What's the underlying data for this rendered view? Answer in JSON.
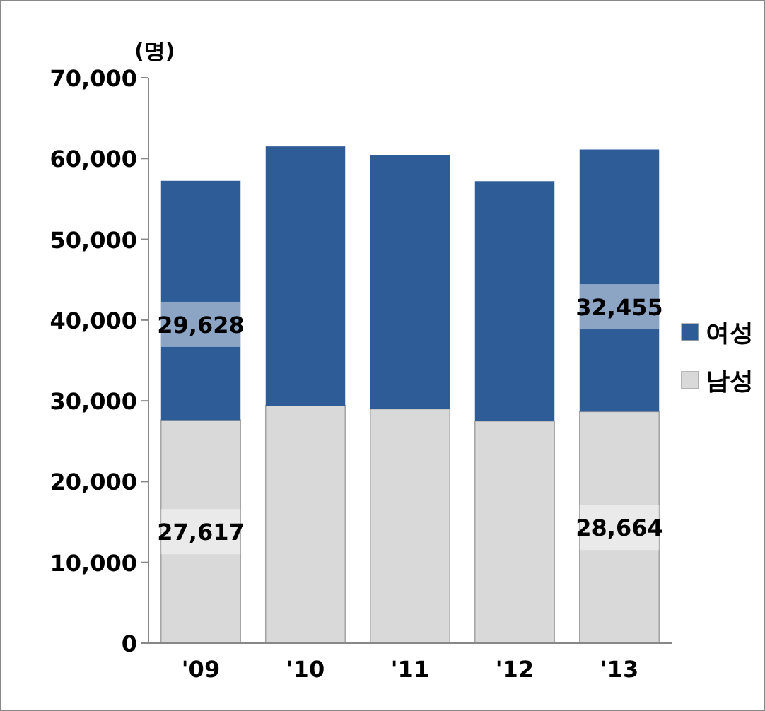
{
  "chart_data": {
    "type": "bar",
    "stacked": true,
    "ylabel": "(명)",
    "categories": [
      "'09",
      "'10",
      "'11",
      "'12",
      "'13"
    ],
    "series": [
      {
        "name": "남성",
        "color": "#d9d9d9",
        "values": [
          27617,
          29400,
          29000,
          27500,
          28664
        ],
        "value_labels": [
          "27,617",
          null,
          null,
          null,
          "28,664"
        ]
      },
      {
        "name": "여성",
        "color": "#2e5c96",
        "values": [
          29628,
          32100,
          31400,
          29700,
          32455
        ],
        "value_labels": [
          "29,628",
          null,
          null,
          null,
          "32,455"
        ]
      }
    ],
    "ylim": [
      0,
      70000
    ],
    "yticks": [
      0,
      {
        "value": 10000,
        "label": "10,000"
      },
      {
        "value": 20000,
        "label": "20,000"
      },
      {
        "value": 30000,
        "label": "30,000"
      },
      {
        "value": 40000,
        "label": "40,000"
      },
      {
        "value": 50000,
        "label": "50,000"
      },
      {
        "value": 60000,
        "label": "60,000"
      },
      {
        "value": 70000,
        "label": "70,000"
      }
    ],
    "legend": "right"
  }
}
